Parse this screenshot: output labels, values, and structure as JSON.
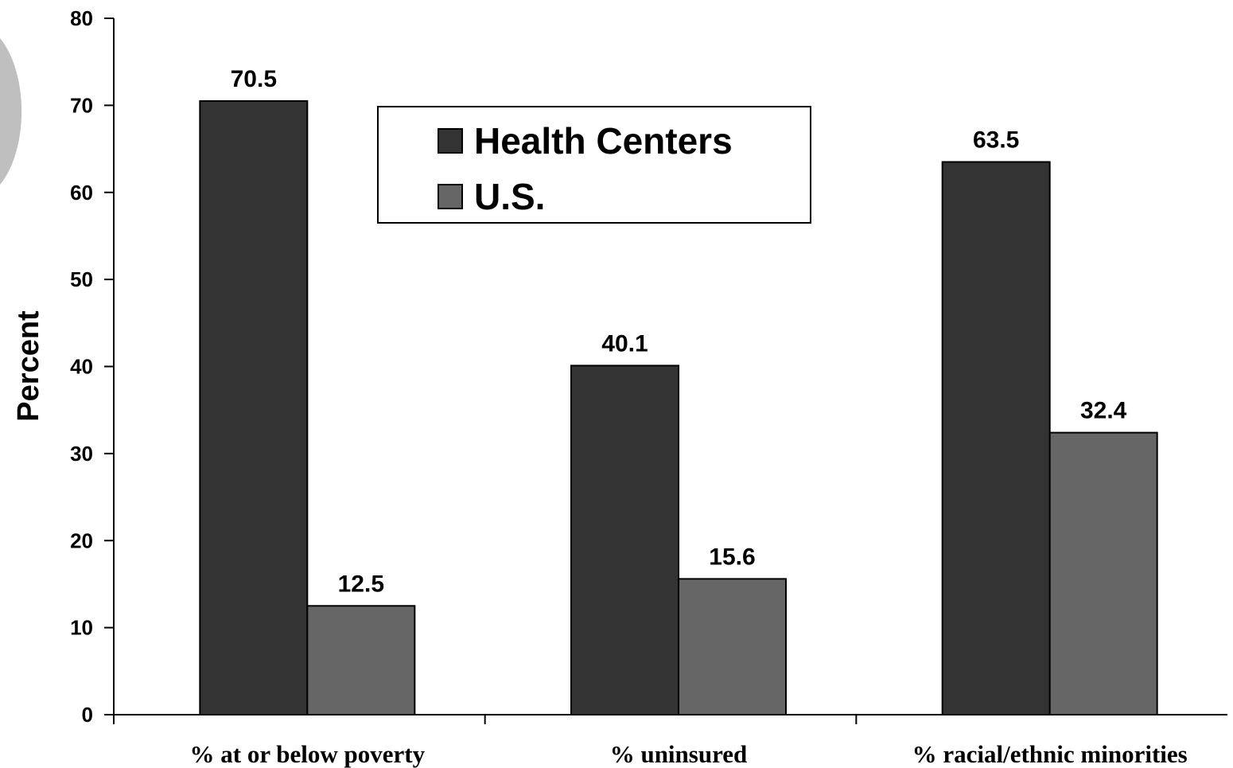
{
  "chart_data": {
    "type": "bar",
    "title": "",
    "xlabel": "",
    "ylabel": "Percent",
    "ylim": [
      0,
      80
    ],
    "yticks": [
      0,
      10,
      20,
      30,
      40,
      50,
      60,
      70,
      80
    ],
    "grid": false,
    "legend_position": "top-center",
    "categories": [
      "% at or below poverty",
      "% uninsured",
      "% racial/ethnic minorities"
    ],
    "series": [
      {
        "name": "Health Centers",
        "color": "#333333",
        "values": [
          70.5,
          40.1,
          63.5
        ]
      },
      {
        "name": "U.S.",
        "color": "#666666",
        "values": [
          12.5,
          15.6,
          32.4
        ]
      }
    ]
  }
}
